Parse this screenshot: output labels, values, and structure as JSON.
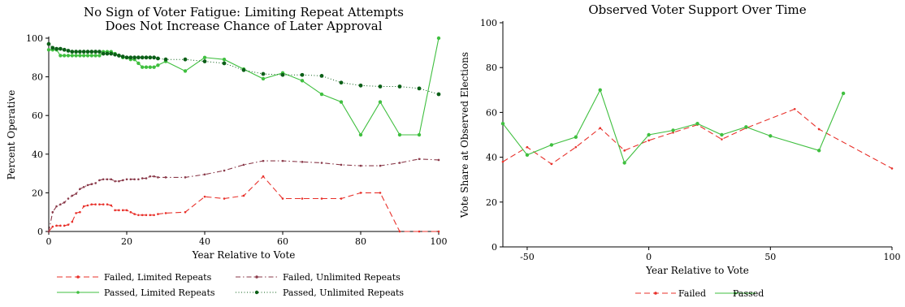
{
  "chart_data": [
    {
      "type": "line",
      "title": "No Sign of Voter Fatigue: Limiting Repeat Attempts",
      "subtitle": "Does Not Increase Chance of Later Approval",
      "xlabel": "Year Relative to Vote",
      "ylabel": "Percent Operative",
      "xlim": [
        0,
        100
      ],
      "ylim": [
        0,
        100
      ],
      "xticks": [
        0,
        20,
        40,
        60,
        80,
        100
      ],
      "yticks": [
        0,
        20,
        40,
        60,
        80,
        100
      ],
      "legend_position": "bottom",
      "series": [
        {
          "name": "Failed, Limited Repeats",
          "color": "#e8302a",
          "style": "dashed",
          "x": [
            0,
            1,
            2,
            3,
            4,
            5,
            6,
            7,
            8,
            9,
            10,
            11,
            12,
            13,
            14,
            15,
            16,
            17,
            18,
            19,
            20,
            21,
            22,
            23,
            24,
            25,
            26,
            27,
            28,
            30,
            35,
            40,
            45,
            50,
            55,
            60,
            65,
            70,
            75,
            80,
            85,
            90,
            95,
            100
          ],
          "y": [
            0,
            2.5,
            3,
            3,
            3,
            3.5,
            5,
            9.5,
            10,
            13,
            13.5,
            14,
            14,
            14,
            14,
            14,
            13.5,
            11,
            11,
            11,
            11,
            10,
            9,
            8.5,
            8.5,
            8.5,
            8.5,
            8.5,
            9,
            9.5,
            10,
            18,
            17,
            18.5,
            28.5,
            17,
            17,
            17,
            17,
            20,
            20,
            0,
            0,
            0
          ]
        },
        {
          "name": "Passed, Limited Repeats",
          "color": "#3fbf3f",
          "style": "solid",
          "x": [
            0,
            1,
            2,
            3,
            4,
            5,
            6,
            7,
            8,
            9,
            10,
            11,
            12,
            13,
            14,
            15,
            16,
            17,
            18,
            19,
            20,
            21,
            22,
            23,
            24,
            25,
            26,
            27,
            28,
            30,
            35,
            40,
            45,
            50,
            55,
            60,
            65,
            70,
            75,
            80,
            85,
            90,
            95,
            100
          ],
          "y": [
            94,
            94,
            94,
            91,
            91,
            91,
            91,
            91,
            91,
            91,
            91,
            91,
            91,
            91,
            93,
            93,
            93,
            92,
            91,
            90,
            90,
            89,
            89,
            87,
            85,
            85,
            85,
            85,
            86,
            88,
            83,
            90,
            89,
            84,
            79,
            82,
            78,
            71,
            67,
            50,
            67,
            50,
            50,
            100
          ]
        },
        {
          "name": "Failed, Unlimited Repeats",
          "color": "#8a3a4a",
          "style": "dashdot",
          "x": [
            0,
            1,
            2,
            3,
            4,
            5,
            6,
            7,
            8,
            9,
            10,
            11,
            12,
            13,
            14,
            15,
            16,
            17,
            18,
            19,
            20,
            21,
            22,
            23,
            24,
            25,
            26,
            27,
            28,
            30,
            35,
            40,
            45,
            50,
            55,
            60,
            65,
            70,
            75,
            80,
            85,
            90,
            95,
            100
          ],
          "y": [
            0,
            10,
            13,
            14,
            15,
            17,
            18.5,
            19.5,
            22,
            23,
            24,
            24.5,
            25,
            26.5,
            27,
            27,
            27,
            26,
            26,
            26.5,
            27,
            27,
            27,
            27,
            27.5,
            27.5,
            28.5,
            28.5,
            28,
            28,
            28,
            29.5,
            31.5,
            34.5,
            36.5,
            36.5,
            36,
            35.5,
            34.5,
            34,
            34,
            35.5,
            37.5,
            37
          ]
        },
        {
          "name": "Passed, Unlimited Repeats",
          "color": "#0b5f17",
          "style": "dotted",
          "x": [
            0,
            1,
            2,
            3,
            4,
            5,
            6,
            7,
            8,
            9,
            10,
            11,
            12,
            13,
            14,
            15,
            16,
            17,
            18,
            19,
            20,
            21,
            22,
            23,
            24,
            25,
            26,
            27,
            28,
            30,
            35,
            40,
            45,
            50,
            55,
            60,
            65,
            70,
            75,
            80,
            85,
            90,
            95,
            100
          ],
          "y": [
            97,
            95,
            94.5,
            94.5,
            94,
            93.5,
            93,
            93,
            93,
            93,
            93,
            93,
            93,
            93,
            92,
            92,
            92,
            91.5,
            91,
            90.5,
            90,
            90,
            90,
            90,
            90,
            90,
            90,
            90,
            89.5,
            89,
            89,
            88,
            87,
            83.5,
            81.5,
            81,
            81,
            80.5,
            77,
            75.5,
            75,
            75,
            74,
            71
          ]
        }
      ]
    },
    {
      "type": "line",
      "title": "Observed Voter Support Over Time",
      "xlabel": "Year Relative to Vote",
      "ylabel": "Vote Share at Observed Elections",
      "xlim": [
        -60,
        100
      ],
      "ylim": [
        0,
        100
      ],
      "xticks": [
        -50,
        0,
        50,
        100
      ],
      "yticks": [
        0,
        20,
        40,
        60,
        80,
        100
      ],
      "legend_position": "bottom",
      "series": [
        {
          "name": "Failed",
          "color": "#e8302a",
          "style": "dashed",
          "x": [
            -60,
            -50,
            -40,
            -30,
            -20,
            -10,
            0,
            10,
            20,
            30,
            40,
            60,
            70,
            100
          ],
          "y": [
            38,
            44.5,
            37,
            44.5,
            53,
            43,
            47.5,
            51,
            54.5,
            48,
            53,
            61.5,
            52.5,
            35
          ]
        },
        {
          "name": "Passed",
          "color": "#3fbf3f",
          "style": "solid",
          "x": [
            -60,
            -50,
            -40,
            -30,
            -20,
            -10,
            0,
            10,
            20,
            30,
            40,
            50,
            70,
            80
          ],
          "y": [
            55,
            41,
            45.5,
            49,
            70,
            37.5,
            50,
            52,
            55,
            50,
            53.5,
            49.5,
            43,
            68.5
          ]
        }
      ]
    }
  ]
}
